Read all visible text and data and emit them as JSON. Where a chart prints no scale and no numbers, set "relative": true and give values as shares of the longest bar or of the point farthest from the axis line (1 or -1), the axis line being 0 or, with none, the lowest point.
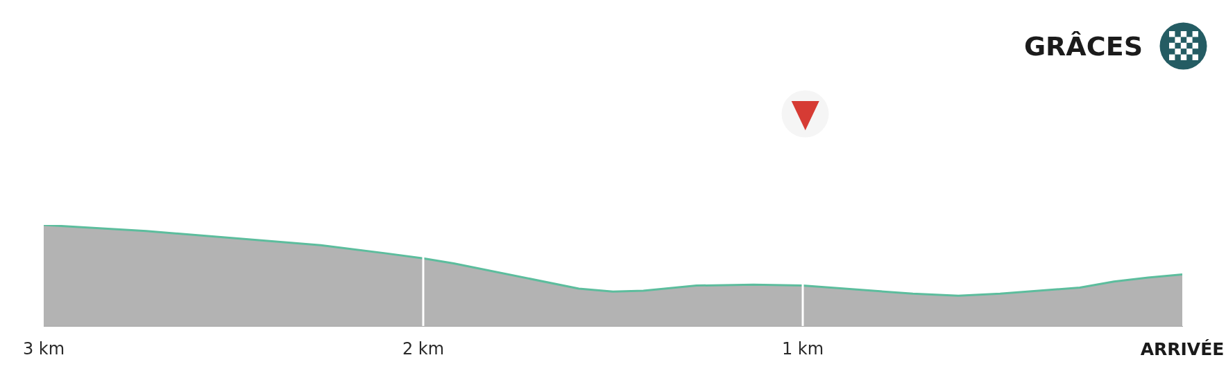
{
  "chart_data": {
    "type": "area",
    "title": "GRÂCES",
    "x": [
      3.0,
      2.73,
      2.27,
      2.1,
      2.0,
      1.92,
      1.59,
      1.5,
      1.42,
      1.28,
      1.13,
      1.0,
      0.71,
      0.59,
      0.48,
      0.27,
      0.18,
      0.09,
      0.0
    ],
    "values": [
      1,
      0.94,
      0.8,
      0.72,
      0.67,
      0.62,
      0.37,
      0.34,
      0.35,
      0.4,
      0.41,
      0.4,
      0.32,
      0.3,
      0.32,
      0.38,
      0.44,
      0.48,
      0.51
    ],
    "color": "#5cbd9d",
    "relative": true,
    "xlim": [
      3,
      0
    ],
    "xticks": [
      {
        "value": 3,
        "label": "3 km"
      },
      {
        "value": 2,
        "label": "2 km"
      },
      {
        "value": 1,
        "label": "1 km"
      },
      {
        "value": 0,
        "label": "ARRIVÉE"
      }
    ],
    "ref_lines": [
      {
        "axis": "x",
        "value": 2,
        "color": "#ffffff"
      },
      {
        "axis": "x",
        "value": 1,
        "color": "#ffffff"
      }
    ]
  }
}
